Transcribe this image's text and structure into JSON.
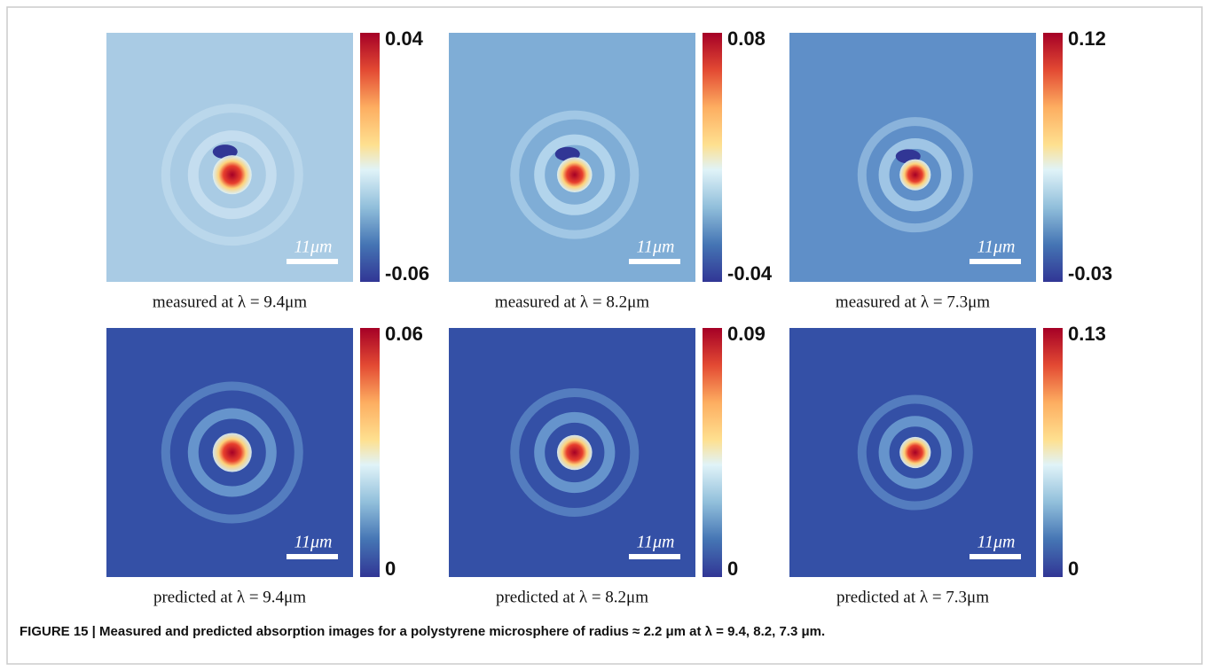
{
  "panels": [
    {
      "colorbar_max": "0.04",
      "colorbar_min": "-0.06",
      "scale_bar": "11μm",
      "caption": "measured at λ = 9.4μm"
    },
    {
      "colorbar_max": "0.08",
      "colorbar_min": "-0.04",
      "scale_bar": "11μm",
      "caption": "measured at λ = 8.2μm"
    },
    {
      "colorbar_max": "0.12",
      "colorbar_min": "-0.03",
      "scale_bar": "11μm",
      "caption": "measured at λ = 7.3μm"
    },
    {
      "colorbar_max": "0.06",
      "colorbar_min": "0",
      "scale_bar": "11μm",
      "caption": "predicted at λ = 9.4μm"
    },
    {
      "colorbar_max": "0.09",
      "colorbar_min": "0",
      "scale_bar": "11μm",
      "caption": "predicted at λ = 8.2μm"
    },
    {
      "colorbar_max": "0.13",
      "colorbar_min": "0",
      "scale_bar": "11μm",
      "caption": "predicted at λ = 7.3μm"
    }
  ],
  "figure_caption": "FIGURE 15 | Measured and predicted absorption images for a polystyrene microsphere of radius ≈ 2.2 μm at λ = 9.4, 8.2, 7.3 μm."
}
